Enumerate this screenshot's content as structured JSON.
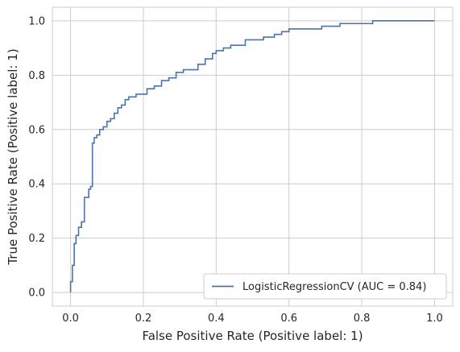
{
  "chart_data": {
    "type": "line",
    "title": "",
    "xlabel": "False Positive Rate (Positive label: 1)",
    "ylabel": "True Positive Rate (Positive label: 1)",
    "xlim": [
      -0.05,
      1.05
    ],
    "ylim": [
      -0.05,
      1.05
    ],
    "xticks": [
      0.0,
      0.2,
      0.4,
      0.6,
      0.8,
      1.0
    ],
    "xtick_labels": [
      "0.0",
      "0.2",
      "0.4",
      "0.6",
      "0.8",
      "1.0"
    ],
    "yticks": [
      0.0,
      0.2,
      0.4,
      0.6,
      0.8,
      1.0
    ],
    "ytick_labels": [
      "0.0",
      "0.2",
      "0.4",
      "0.6",
      "0.8",
      "1.0"
    ],
    "grid": true,
    "legend": {
      "placement": "lower-right",
      "entries": [
        "LogisticRegressionCV (AUC = 0.84)"
      ]
    },
    "series": [
      {
        "name": "LogisticRegressionCV (AUC = 0.84)",
        "color": "#4c72b0",
        "step": true,
        "points": [
          [
            0.0,
            0.0
          ],
          [
            0.0,
            0.04
          ],
          [
            0.005,
            0.04
          ],
          [
            0.005,
            0.1
          ],
          [
            0.01,
            0.1
          ],
          [
            0.01,
            0.18
          ],
          [
            0.015,
            0.18
          ],
          [
            0.015,
            0.21
          ],
          [
            0.022,
            0.21
          ],
          [
            0.022,
            0.24
          ],
          [
            0.03,
            0.24
          ],
          [
            0.03,
            0.26
          ],
          [
            0.038,
            0.26
          ],
          [
            0.038,
            0.35
          ],
          [
            0.05,
            0.35
          ],
          [
            0.05,
            0.38
          ],
          [
            0.055,
            0.38
          ],
          [
            0.055,
            0.39
          ],
          [
            0.06,
            0.39
          ],
          [
            0.06,
            0.55
          ],
          [
            0.065,
            0.55
          ],
          [
            0.065,
            0.57
          ],
          [
            0.072,
            0.57
          ],
          [
            0.072,
            0.58
          ],
          [
            0.08,
            0.58
          ],
          [
            0.08,
            0.6
          ],
          [
            0.09,
            0.6
          ],
          [
            0.09,
            0.61
          ],
          [
            0.1,
            0.61
          ],
          [
            0.1,
            0.63
          ],
          [
            0.11,
            0.63
          ],
          [
            0.11,
            0.64
          ],
          [
            0.12,
            0.64
          ],
          [
            0.12,
            0.66
          ],
          [
            0.13,
            0.66
          ],
          [
            0.13,
            0.68
          ],
          [
            0.14,
            0.68
          ],
          [
            0.14,
            0.69
          ],
          [
            0.15,
            0.69
          ],
          [
            0.15,
            0.71
          ],
          [
            0.16,
            0.71
          ],
          [
            0.16,
            0.72
          ],
          [
            0.18,
            0.72
          ],
          [
            0.18,
            0.73
          ],
          [
            0.21,
            0.73
          ],
          [
            0.21,
            0.75
          ],
          [
            0.23,
            0.75
          ],
          [
            0.23,
            0.76
          ],
          [
            0.25,
            0.76
          ],
          [
            0.25,
            0.78
          ],
          [
            0.27,
            0.78
          ],
          [
            0.27,
            0.79
          ],
          [
            0.29,
            0.79
          ],
          [
            0.29,
            0.81
          ],
          [
            0.31,
            0.81
          ],
          [
            0.31,
            0.82
          ],
          [
            0.35,
            0.82
          ],
          [
            0.35,
            0.84
          ],
          [
            0.37,
            0.84
          ],
          [
            0.37,
            0.86
          ],
          [
            0.39,
            0.86
          ],
          [
            0.39,
            0.88
          ],
          [
            0.4,
            0.88
          ],
          [
            0.4,
            0.89
          ],
          [
            0.42,
            0.89
          ],
          [
            0.42,
            0.9
          ],
          [
            0.44,
            0.9
          ],
          [
            0.44,
            0.91
          ],
          [
            0.48,
            0.91
          ],
          [
            0.48,
            0.93
          ],
          [
            0.53,
            0.93
          ],
          [
            0.53,
            0.94
          ],
          [
            0.56,
            0.94
          ],
          [
            0.56,
            0.95
          ],
          [
            0.58,
            0.95
          ],
          [
            0.58,
            0.96
          ],
          [
            0.6,
            0.96
          ],
          [
            0.6,
            0.97
          ],
          [
            0.69,
            0.97
          ],
          [
            0.69,
            0.98
          ],
          [
            0.74,
            0.98
          ],
          [
            0.74,
            0.99
          ],
          [
            0.83,
            0.99
          ],
          [
            0.83,
            1.0
          ],
          [
            1.0,
            1.0
          ]
        ]
      }
    ]
  }
}
